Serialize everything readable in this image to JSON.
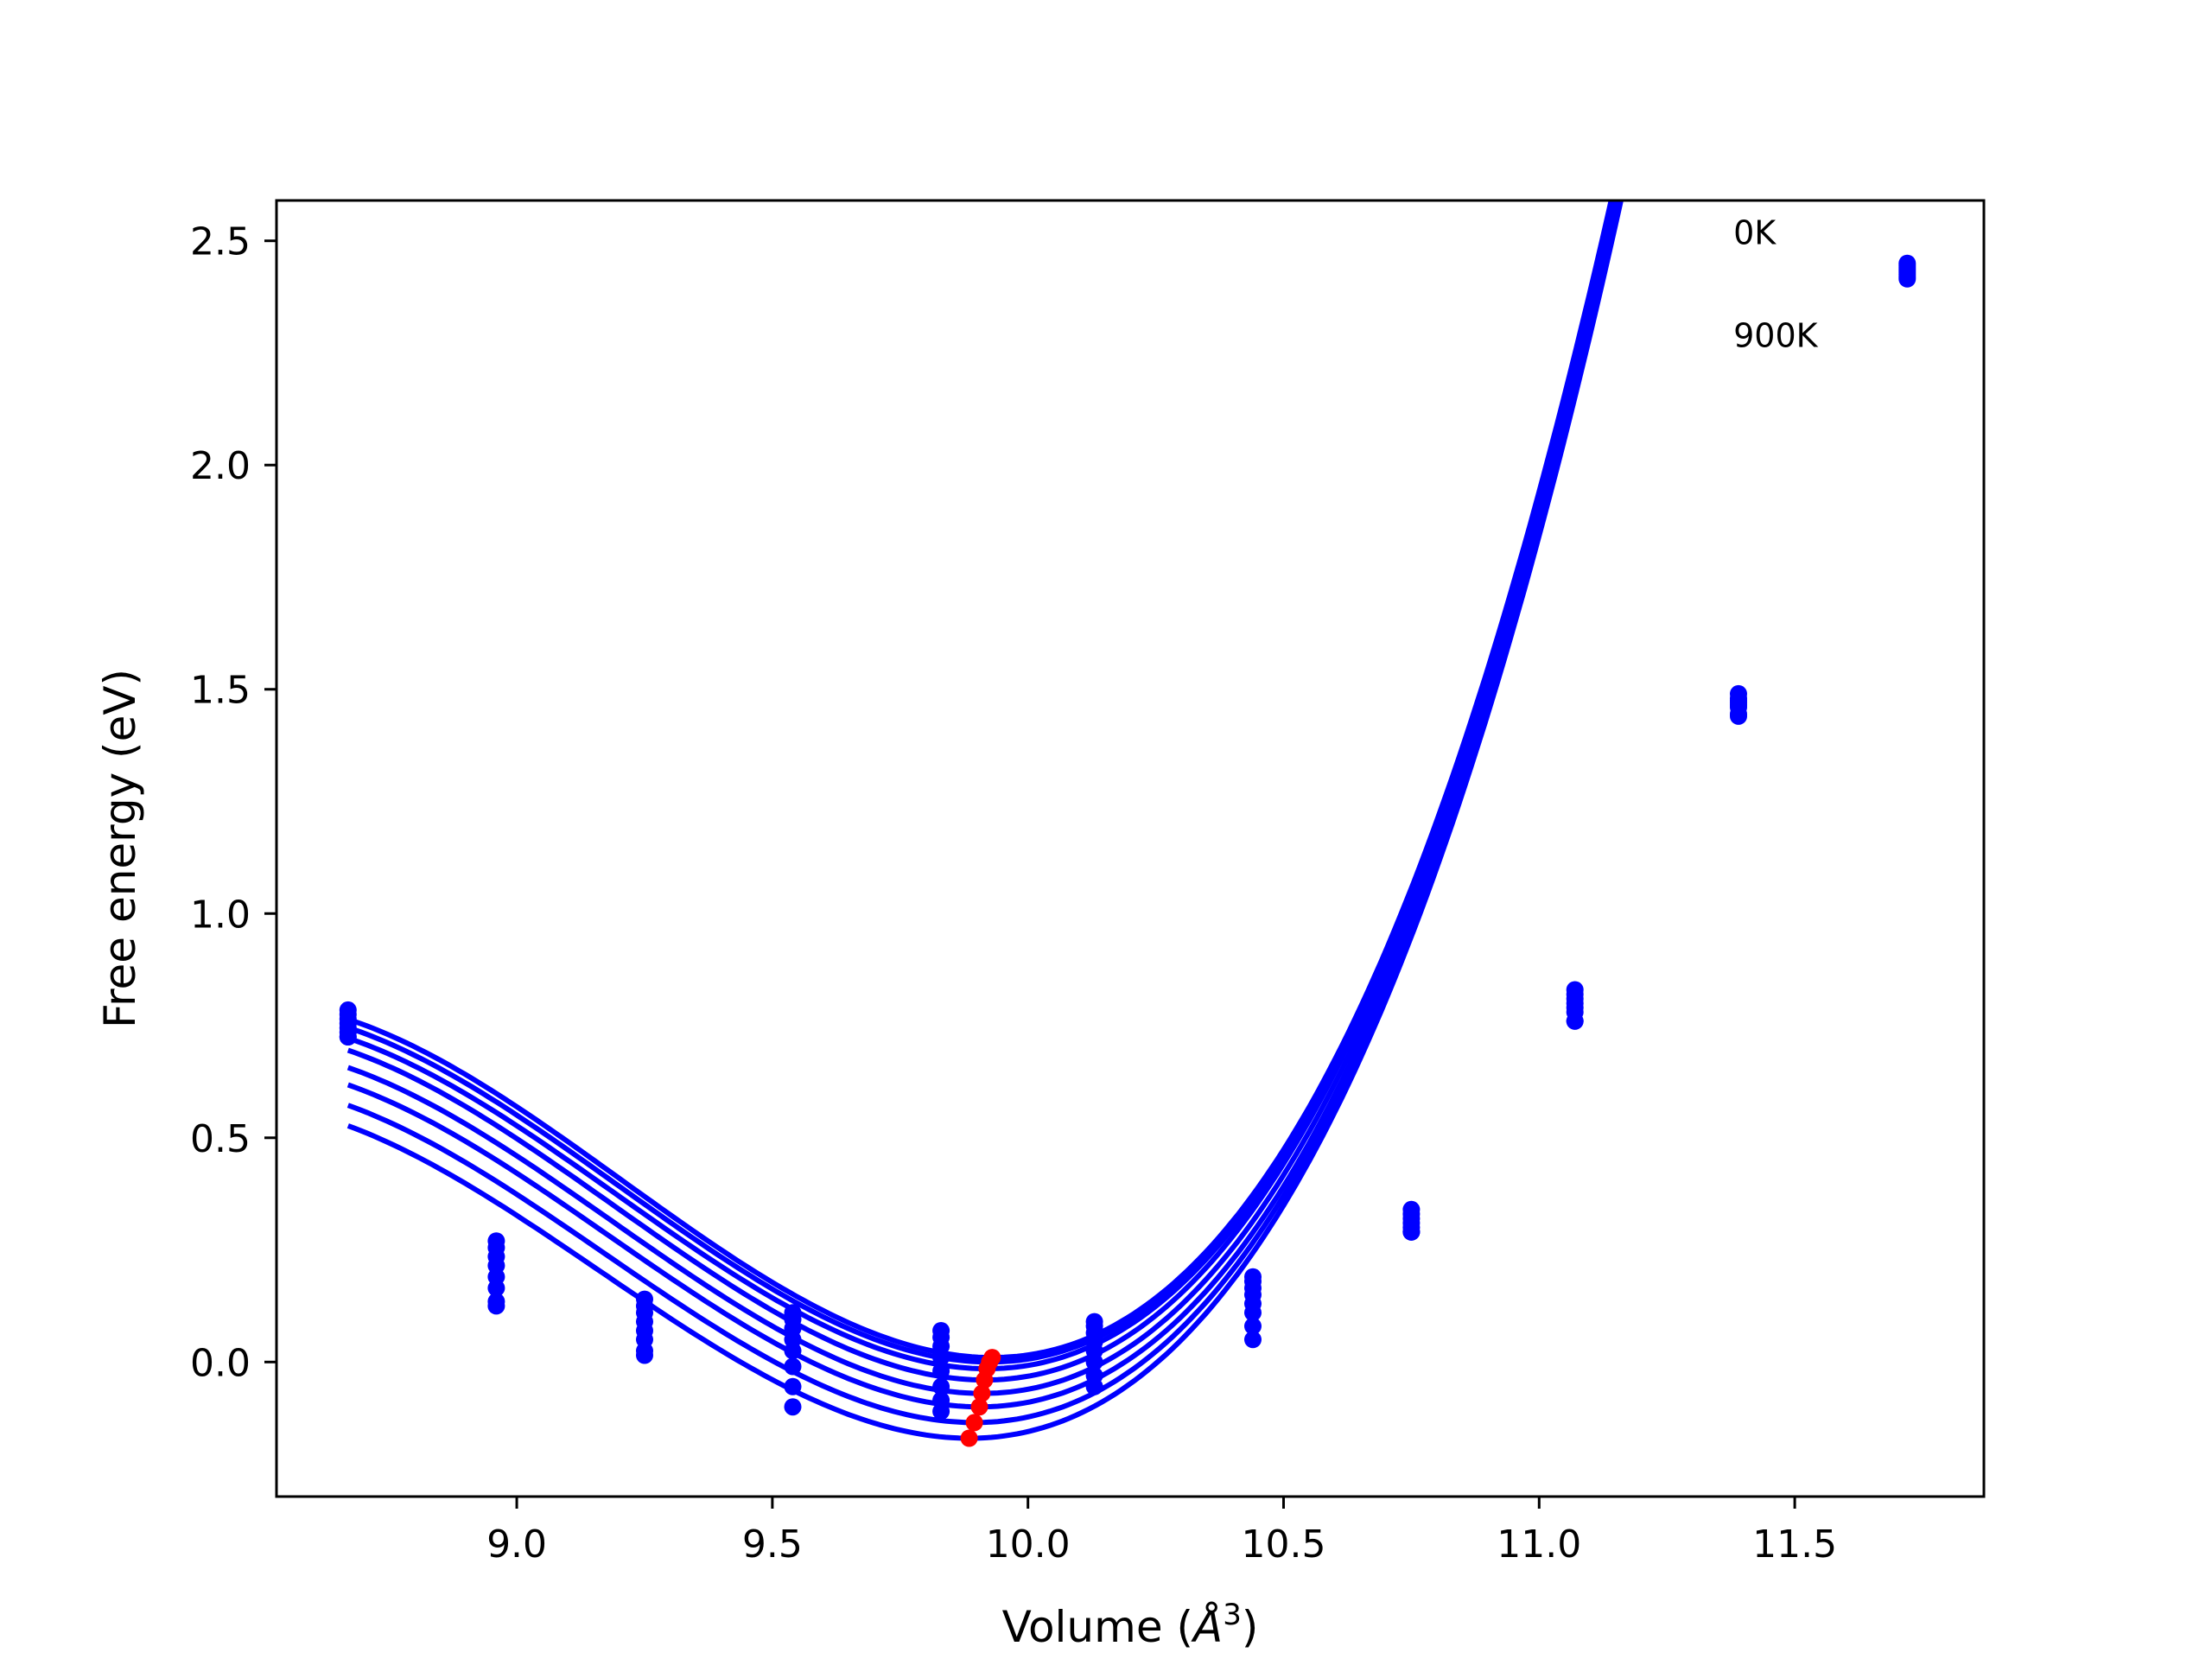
{
  "chart_data": {
    "type": "line",
    "title": "",
    "xlabel": "Volume (",
    "xlabel_symbol": "Å",
    "xlabel_exponent": "3",
    "xlabel_close": ")",
    "ylabel": "Free energy (eV)",
    "xlim": [
      8.53,
      11.87
    ],
    "ylim": [
      -0.3,
      2.59
    ],
    "xticks": [
      9.0,
      9.5,
      10.0,
      10.5,
      11.0,
      11.5
    ],
    "xtick_labels": [
      "9.0",
      "9.5",
      "10.0",
      "10.5",
      "11.0",
      "11.5"
    ],
    "yticks": [
      0.0,
      0.5,
      1.0,
      1.5,
      2.0,
      2.5
    ],
    "ytick_labels": [
      "0.0",
      "0.5",
      "1.0",
      "1.5",
      "2.0",
      "2.5"
    ],
    "grid": false,
    "annotations": [
      {
        "text": "0K",
        "x": 11.38,
        "y": 2.52
      },
      {
        "text": "900K",
        "x": 11.38,
        "y": 2.29
      }
    ],
    "colors": {
      "curves": "#0000ff",
      "points": "#0000ff",
      "minima": "#ff0000",
      "axes": "#000000"
    },
    "volumes": [
      8.67,
      8.96,
      9.25,
      9.54,
      9.83,
      10.13,
      10.44,
      10.75,
      11.07,
      11.39,
      11.72
    ],
    "series": [
      {
        "values": [
          0.785,
          0.27,
          0.14,
          0.11,
          0.07,
          0.09,
          0.19,
          0.34,
          0.83,
          1.49,
          2.45
        ],
        "fit_min_volume": 9.93,
        "fit_min_energy": 0.01,
        "fit_curvature": 1.13
      },
      {
        "values": [
          0.775,
          0.255,
          0.125,
          0.095,
          0.055,
          0.08,
          0.18,
          0.33,
          0.82,
          1.48,
          2.445
        ],
        "fit_min_volume": 9.925,
        "fit_min_energy": 0.0,
        "fit_curvature": 1.12
      },
      {
        "values": [
          0.765,
          0.235,
          0.11,
          0.075,
          0.035,
          0.065,
          0.165,
          0.32,
          0.81,
          1.475,
          2.44
        ],
        "fit_min_volume": 9.92,
        "fit_min_energy": -0.015,
        "fit_curvature": 1.11
      },
      {
        "values": [
          0.755,
          0.215,
          0.09,
          0.05,
          0.01,
          0.045,
          0.15,
          0.31,
          0.8,
          1.47,
          2.435
        ],
        "fit_min_volume": 9.915,
        "fit_min_energy": -0.04,
        "fit_curvature": 1.11
      },
      {
        "values": [
          0.745,
          0.19,
          0.07,
          0.025,
          -0.02,
          0.025,
          0.13,
          0.3,
          0.79,
          1.465,
          2.43
        ],
        "fit_min_volume": 9.91,
        "fit_min_energy": -0.07,
        "fit_curvature": 1.1
      },
      {
        "values": [
          0.735,
          0.165,
          0.05,
          -0.01,
          -0.055,
          0.0,
          0.11,
          0.29,
          0.78,
          1.46,
          2.425
        ],
        "fit_min_volume": 9.905,
        "fit_min_energy": -0.1,
        "fit_curvature": 1.09
      },
      {
        "values": [
          0.725,
          0.135,
          0.025,
          -0.055,
          -0.085,
          -0.03,
          0.08,
          0.29,
          0.76,
          1.445,
          2.42
        ],
        "fit_min_volume": 9.895,
        "fit_min_energy": -0.135,
        "fit_curvature": 1.08
      },
      {
        "values": [
          0.725,
          0.125,
          0.015,
          -0.1,
          -0.11,
          -0.055,
          0.05,
          0.29,
          0.76,
          1.44,
          2.415
        ],
        "fit_min_volume": 9.885,
        "fit_min_energy": -0.17,
        "fit_curvature": 1.07
      }
    ],
    "minima": [
      {
        "x": 9.93,
        "y": 0.01
      },
      {
        "x": 9.925,
        "y": 0.0
      },
      {
        "x": 9.92,
        "y": -0.015
      },
      {
        "x": 9.915,
        "y": -0.04
      },
      {
        "x": 9.91,
        "y": -0.07
      },
      {
        "x": 9.905,
        "y": -0.1
      },
      {
        "x": 9.895,
        "y": -0.135
      },
      {
        "x": 9.885,
        "y": -0.17
      }
    ]
  }
}
